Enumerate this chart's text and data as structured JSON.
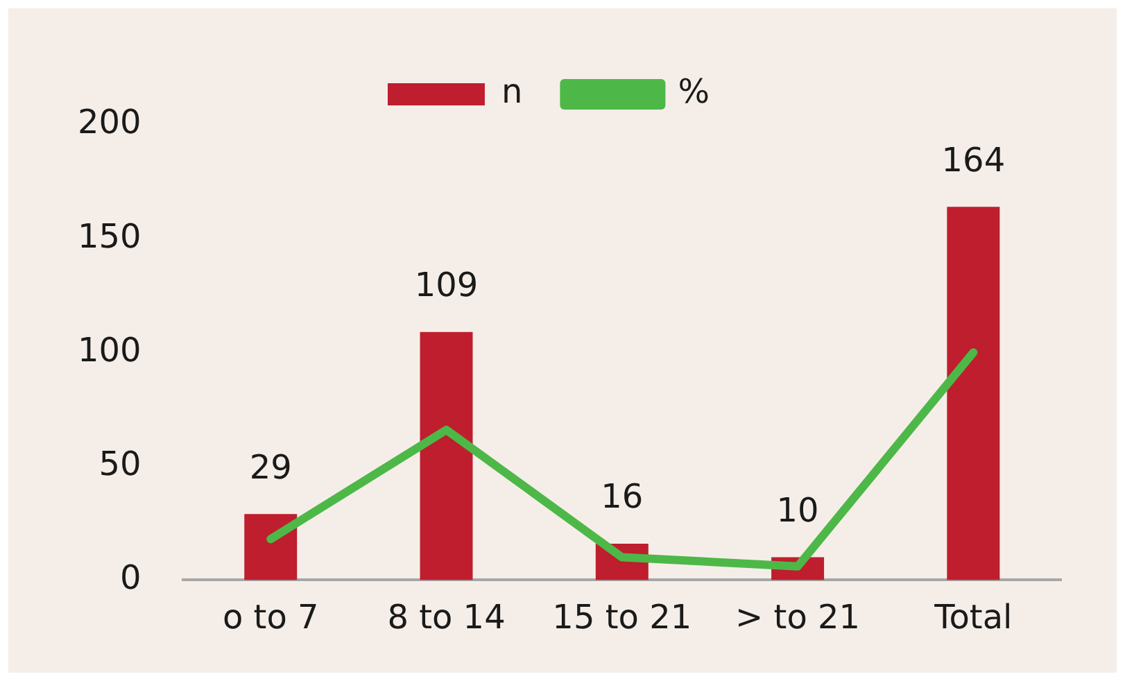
{
  "chart_data": {
    "type": "bar",
    "categories": [
      "o to 7",
      "8 to 14",
      "15 to 21",
      "> to 21",
      "Total"
    ],
    "series": [
      {
        "name": "n",
        "color": "#be1e2d",
        "values": [
          29,
          109,
          16,
          10,
          164
        ],
        "value_labels": [
          "29",
          "109",
          "16",
          "10",
          "164"
        ]
      },
      {
        "name": "%",
        "type": "line",
        "color": "#4db848",
        "values": [
          18,
          66,
          10,
          6,
          100
        ]
      }
    ],
    "ylim": [
      0,
      200
    ],
    "yticks": [
      0,
      50,
      100,
      150,
      200
    ],
    "grid": false,
    "legend": "top",
    "marker": "none",
    "line_style": "solid"
  }
}
